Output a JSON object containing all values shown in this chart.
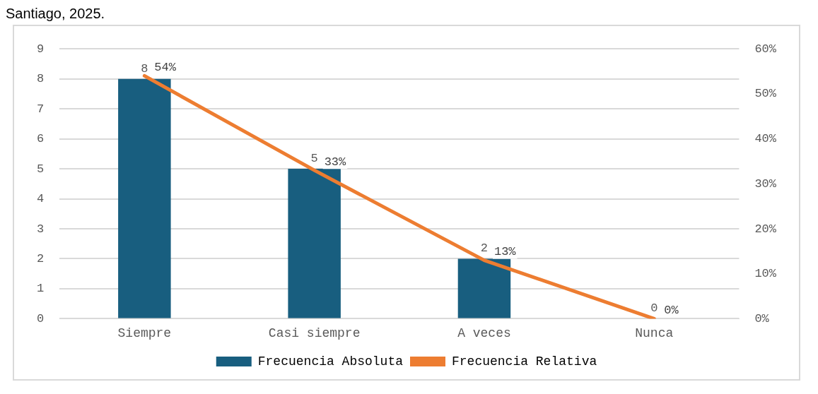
{
  "chart_data": {
    "type": "bar",
    "title": "Santiago, 2025.",
    "categories": [
      "Siempre",
      "Casi siempre",
      "A veces",
      "Nunca"
    ],
    "series": [
      {
        "name": "Frecuencia Absoluta",
        "color": "#185e7f",
        "values": [
          8,
          5,
          2,
          0
        ],
        "value_labels": [
          "8",
          "5",
          "2",
          "0"
        ]
      },
      {
        "name": "Frecuencia Relativa",
        "type": "line",
        "axis": "y2",
        "color": "#ed7d31",
        "values": [
          54,
          33,
          13,
          0
        ],
        "value_labels": [
          "54%",
          "33%",
          "13%",
          "0%"
        ]
      }
    ],
    "ylim": [
      0,
      9
    ],
    "yticks": [
      0,
      1,
      2,
      3,
      4,
      5,
      6,
      7,
      8,
      9
    ],
    "y2lim": [
      0,
      60
    ],
    "y2ticks": [
      {
        "value": 0,
        "label": "0%"
      },
      {
        "value": 10,
        "label": "10%"
      },
      {
        "value": 20,
        "label": "20%"
      },
      {
        "value": 30,
        "label": "30%"
      },
      {
        "value": 40,
        "label": "40%"
      },
      {
        "value": 50,
        "label": "50%"
      },
      {
        "value": 60,
        "label": "60%"
      }
    ],
    "grid": "y",
    "legend": "bottom",
    "marker": "none"
  }
}
